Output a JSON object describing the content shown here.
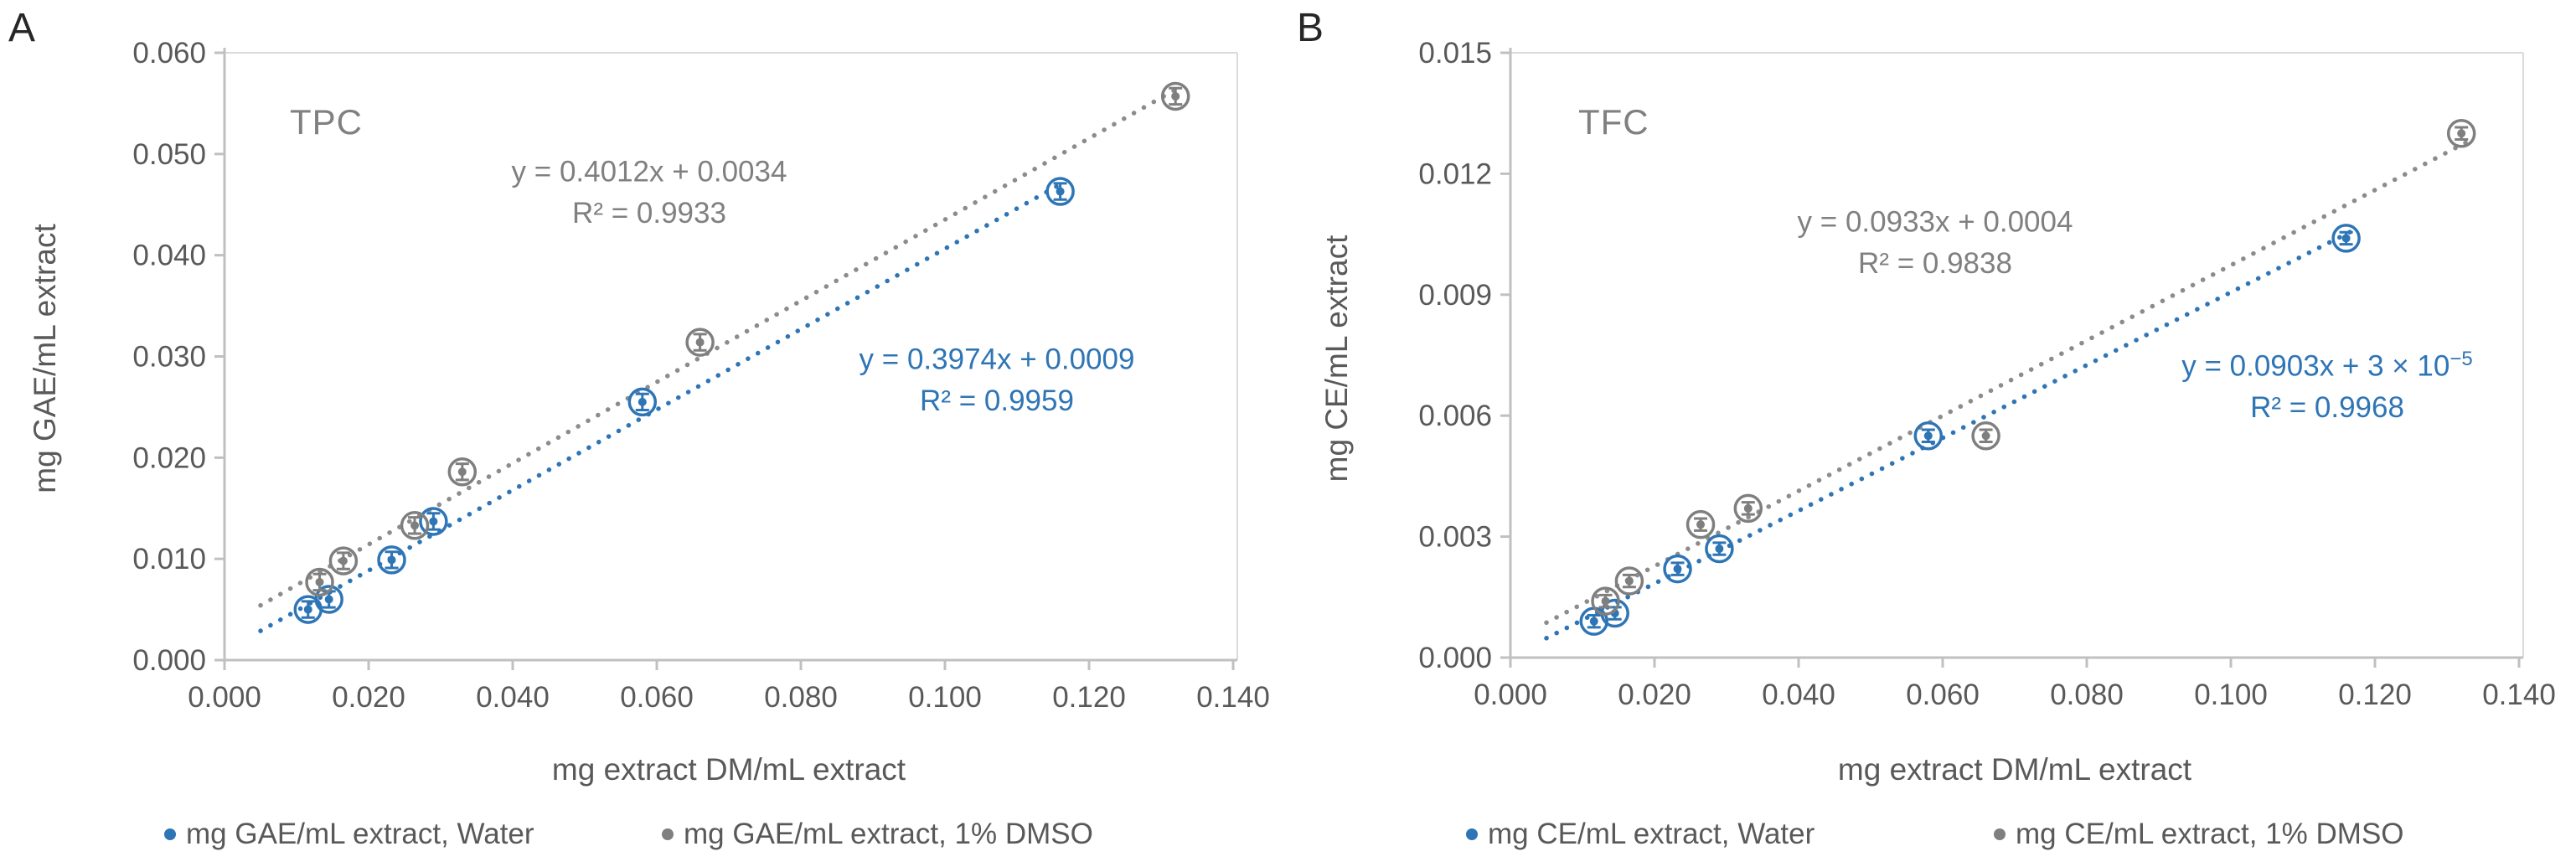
{
  "figure": {
    "panel_a_letter": "A",
    "panel_b_letter": "B"
  },
  "chart_data": [
    {
      "type": "scatter",
      "panel_label": "A",
      "title": "TPC",
      "xlabel": "mg extract DM/mL extract",
      "ylabel": "mg GAE/mL extract",
      "xlim": [
        0.0,
        0.14
      ],
      "ylim": [
        0.0,
        0.06
      ],
      "x_tick_labels": [
        "0.000",
        "0.020",
        "0.040",
        "0.060",
        "0.080",
        "0.100",
        "0.120",
        "0.140"
      ],
      "y_tick_labels": [
        "0.000",
        "0.010",
        "0.020",
        "0.030",
        "0.040",
        "0.050",
        "0.060"
      ],
      "grid": false,
      "legend_position": "bottom",
      "error_bars": true,
      "series": [
        {
          "name": "mg GAE/mL extract, Water",
          "color": "#2E75B6",
          "trend_color": "#2E75B6",
          "marker": "open-circle-dot",
          "x": [
            0.0116,
            0.0145,
            0.0232,
            0.029,
            0.058,
            0.116
          ],
          "y": [
            0.005,
            0.006,
            0.0099,
            0.0137,
            0.0255,
            0.0463
          ],
          "y_err": 0.0008,
          "trend": {
            "slope": 0.3974,
            "intercept": 0.0009,
            "x_range": [
              0.005,
              0.1165
            ],
            "style": "dotted"
          },
          "equation": "y = 0.3974x + 0.0009",
          "equation_sup": "",
          "r_squared": "R² = 0.9959"
        },
        {
          "name": "mg GAE/mL extract, 1% DMSO",
          "color": "#7F7F7F",
          "trend_color": "#8C8C8C",
          "marker": "open-circle-dot",
          "x": [
            0.0132,
            0.0165,
            0.0264,
            0.033,
            0.066,
            0.132
          ],
          "y": [
            0.0077,
            0.0098,
            0.0133,
            0.0186,
            0.0314,
            0.0557
          ],
          "y_err": 0.0008,
          "trend": {
            "slope": 0.4012,
            "intercept": 0.0034,
            "x_range": [
              0.005,
              0.133
            ],
            "style": "dotted"
          },
          "equation": "y = 0.4012x + 0.0034",
          "equation_sup": "",
          "r_squared": "R² = 0.9933"
        }
      ],
      "legend": [
        "mg GAE/mL extract, Water",
        "mg GAE/mL extract, 1% DMSO"
      ]
    },
    {
      "type": "scatter",
      "panel_label": "B",
      "title": "TFC",
      "xlabel": "mg extract DM/mL extract",
      "ylabel": "mg CE/mL extract",
      "xlim": [
        0.0,
        0.14
      ],
      "ylim": [
        0.0,
        0.015
      ],
      "x_tick_labels": [
        "0.000",
        "0.020",
        "0.040",
        "0.060",
        "0.080",
        "0.100",
        "0.120",
        "0.140"
      ],
      "y_tick_labels": [
        "0.000",
        "0.003",
        "0.006",
        "0.009",
        "0.012",
        "0.015"
      ],
      "grid": false,
      "legend_position": "bottom",
      "error_bars": true,
      "series": [
        {
          "name": "mg CE/mL extract, Water",
          "color": "#2E75B6",
          "trend_color": "#2E75B6",
          "marker": "open-circle-dot",
          "x": [
            0.0116,
            0.0145,
            0.0232,
            0.029,
            0.058,
            0.116
          ],
          "y": [
            0.0009,
            0.0011,
            0.0022,
            0.0027,
            0.0055,
            0.0104
          ],
          "y_err": 0.00015,
          "trend": {
            "slope": 0.0903,
            "intercept": 3e-05,
            "x_range": [
              0.005,
              0.117
            ],
            "style": "dotted"
          },
          "equation": "y = 0.0903x + 3 × 10",
          "equation_sup": "−5",
          "r_squared": "R² = 0.9968"
        },
        {
          "name": "mg CE/mL extract, 1% DMSO",
          "color": "#7F7F7F",
          "trend_color": "#8C8C8C",
          "marker": "open-circle-dot",
          "x": [
            0.0132,
            0.0165,
            0.0264,
            0.033,
            0.066,
            0.132
          ],
          "y": [
            0.0014,
            0.0019,
            0.0033,
            0.0037,
            0.0055,
            0.013
          ],
          "y_err": 0.00015,
          "trend": {
            "slope": 0.0933,
            "intercept": 0.0004,
            "x_range": [
              0.005,
              0.133
            ],
            "style": "dotted"
          },
          "equation": "y = 0.0933x + 0.0004",
          "equation_sup": "",
          "r_squared": "R² = 0.9838"
        }
      ],
      "legend": [
        "mg CE/mL extract, Water",
        "mg CE/mL extract, 1% DMSO"
      ]
    }
  ],
  "colors": {
    "water_series": "#2E75B6",
    "dmso_series": "#7F7F7F",
    "axis_line": "#C0C0C0",
    "plot_border": "#DADADA",
    "tick_text": "#595959"
  }
}
